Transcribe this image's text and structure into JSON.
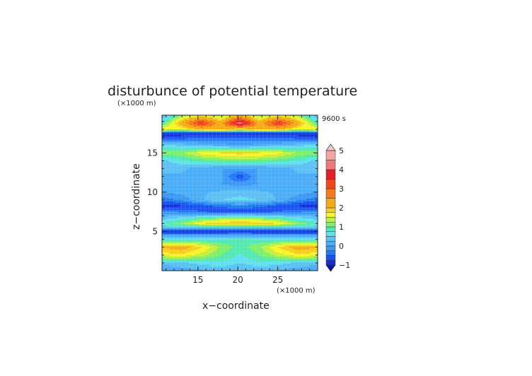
{
  "chart_data": {
    "type": "heatmap",
    "title": "disturbunce of potential temperature",
    "time_label": "9600 s",
    "xlabel": "x−coordinate",
    "ylabel": "z−coordinate",
    "x_unit": "(×1000 m)",
    "y_unit": "(×1000 m)",
    "xlim": [
      10.5,
      30
    ],
    "ylim": [
      0,
      19.8
    ],
    "x_ticks": [
      "15",
      "20",
      "25"
    ],
    "y_ticks": [
      "5",
      "10",
      "15"
    ],
    "colorbar": {
      "range": [
        -1,
        5
      ],
      "labels": [
        "−1",
        "0",
        "1",
        "2",
        "3",
        "4",
        "5"
      ],
      "levels": [
        -1,
        -0.75,
        -0.5,
        -0.25,
        0,
        0.25,
        0.5,
        0.75,
        1,
        1.25,
        1.5,
        1.75,
        2,
        2.5,
        3,
        3.5,
        4,
        4.5,
        5
      ],
      "colors": [
        "#0a14a8",
        "#1330d8",
        "#1a52f0",
        "#2478f5",
        "#3a98f7",
        "#4aadf7",
        "#5cc0f4",
        "#5ee0f0",
        "#52e8b0",
        "#7cf06c",
        "#c0f040",
        "#f5f528",
        "#f5cf1e",
        "#f5aa14",
        "#f57a14",
        "#f0461a",
        "#e81e2a",
        "#f07878",
        "#f5a4a4",
        "#f5c8c8"
      ]
    },
    "rows": [
      {
        "z": 0.0,
        "profile": [
          0.0,
          0.1,
          0.2,
          0.3,
          0.25,
          0.3,
          0.2,
          0.1,
          0.0
        ]
      },
      {
        "z": 1.0,
        "profile": [
          0.3,
          0.45,
          0.6,
          0.7,
          0.5,
          0.7,
          0.6,
          0.45,
          0.3
        ]
      },
      {
        "z": 2.0,
        "profile": [
          1.6,
          1.7,
          1.4,
          1.0,
          0.7,
          1.0,
          1.4,
          1.7,
          1.6
        ]
      },
      {
        "z": 3.0,
        "profile": [
          2.0,
          2.2,
          1.8,
          1.2,
          0.9,
          1.2,
          1.8,
          2.2,
          2.0
        ]
      },
      {
        "z": 4.0,
        "profile": [
          0.7,
          0.7,
          0.7,
          0.8,
          0.9,
          0.8,
          0.7,
          0.7,
          0.7
        ]
      },
      {
        "z": 5.0,
        "profile": [
          -0.9,
          -0.9,
          -0.9,
          -0.9,
          -0.9,
          -0.9,
          -0.9,
          -0.9,
          -0.9
        ]
      },
      {
        "z": 5.5,
        "profile": [
          0.3,
          0.3,
          0.3,
          0.3,
          0.3,
          0.3,
          0.3,
          0.3,
          0.3
        ]
      },
      {
        "z": 6.0,
        "profile": [
          0.8,
          1.2,
          1.7,
          2.0,
          2.0,
          2.0,
          1.7,
          1.2,
          0.8
        ]
      },
      {
        "z": 6.8,
        "profile": [
          0.3,
          0.5,
          0.8,
          1.0,
          1.1,
          1.0,
          0.8,
          0.5,
          0.3
        ]
      },
      {
        "z": 7.5,
        "profile": [
          -0.2,
          -0.3,
          -0.5,
          -0.7,
          -0.8,
          -0.7,
          -0.5,
          -0.3,
          -0.2
        ]
      },
      {
        "z": 8.3,
        "profile": [
          -0.95,
          -0.8,
          -0.6,
          -0.4,
          -0.3,
          -0.4,
          -0.6,
          -0.8,
          -0.95
        ]
      },
      {
        "z": 9.0,
        "profile": [
          -0.4,
          -0.2,
          0.2,
          0.5,
          0.6,
          0.5,
          0.2,
          -0.2,
          -0.4
        ]
      },
      {
        "z": 10.0,
        "profile": [
          0.0,
          0.1,
          0.2,
          0.3,
          0.4,
          0.3,
          0.2,
          0.1,
          0.0
        ]
      },
      {
        "z": 11.0,
        "profile": [
          0.0,
          0.0,
          0.1,
          0.0,
          -0.1,
          0.0,
          0.1,
          0.0,
          0.0
        ]
      },
      {
        "z": 12.0,
        "profile": [
          0.2,
          0.2,
          0.2,
          0.1,
          -0.7,
          0.1,
          0.2,
          0.2,
          0.2
        ]
      },
      {
        "z": 13.0,
        "profile": [
          0.3,
          0.3,
          0.1,
          0.0,
          0.0,
          0.0,
          0.1,
          0.3,
          0.3
        ]
      },
      {
        "z": 14.0,
        "profile": [
          0.4,
          0.7,
          0.9,
          1.0,
          1.0,
          1.0,
          0.9,
          0.7,
          0.4
        ]
      },
      {
        "z": 15.0,
        "profile": [
          1.2,
          1.2,
          1.6,
          1.8,
          1.9,
          1.8,
          1.6,
          1.2,
          1.2
        ]
      },
      {
        "z": 16.0,
        "profile": [
          0.6,
          0.4,
          0.2,
          0.1,
          0.0,
          0.1,
          0.2,
          0.4,
          0.6
        ]
      },
      {
        "z": 16.8,
        "profile": [
          -0.6,
          -0.5,
          -0.4,
          -0.4,
          -0.4,
          -0.4,
          -0.4,
          -0.5,
          -0.6
        ]
      },
      {
        "z": 17.5,
        "profile": [
          -0.95,
          -0.95,
          -0.95,
          -0.95,
          -0.95,
          -0.95,
          -0.95,
          -0.95,
          -0.95
        ]
      },
      {
        "z": 18.0,
        "profile": [
          1.8,
          1.5,
          2.0,
          2.2,
          1.6,
          2.2,
          2.0,
          1.5,
          1.8
        ]
      },
      {
        "z": 18.8,
        "profile": [
          0.8,
          2.2,
          3.6,
          2.2,
          4.4,
          2.2,
          3.6,
          2.2,
          0.8
        ]
      },
      {
        "z": 19.8,
        "profile": [
          0.2,
          1.2,
          1.6,
          1.2,
          2.0,
          1.2,
          1.6,
          1.2,
          0.2
        ]
      }
    ]
  }
}
